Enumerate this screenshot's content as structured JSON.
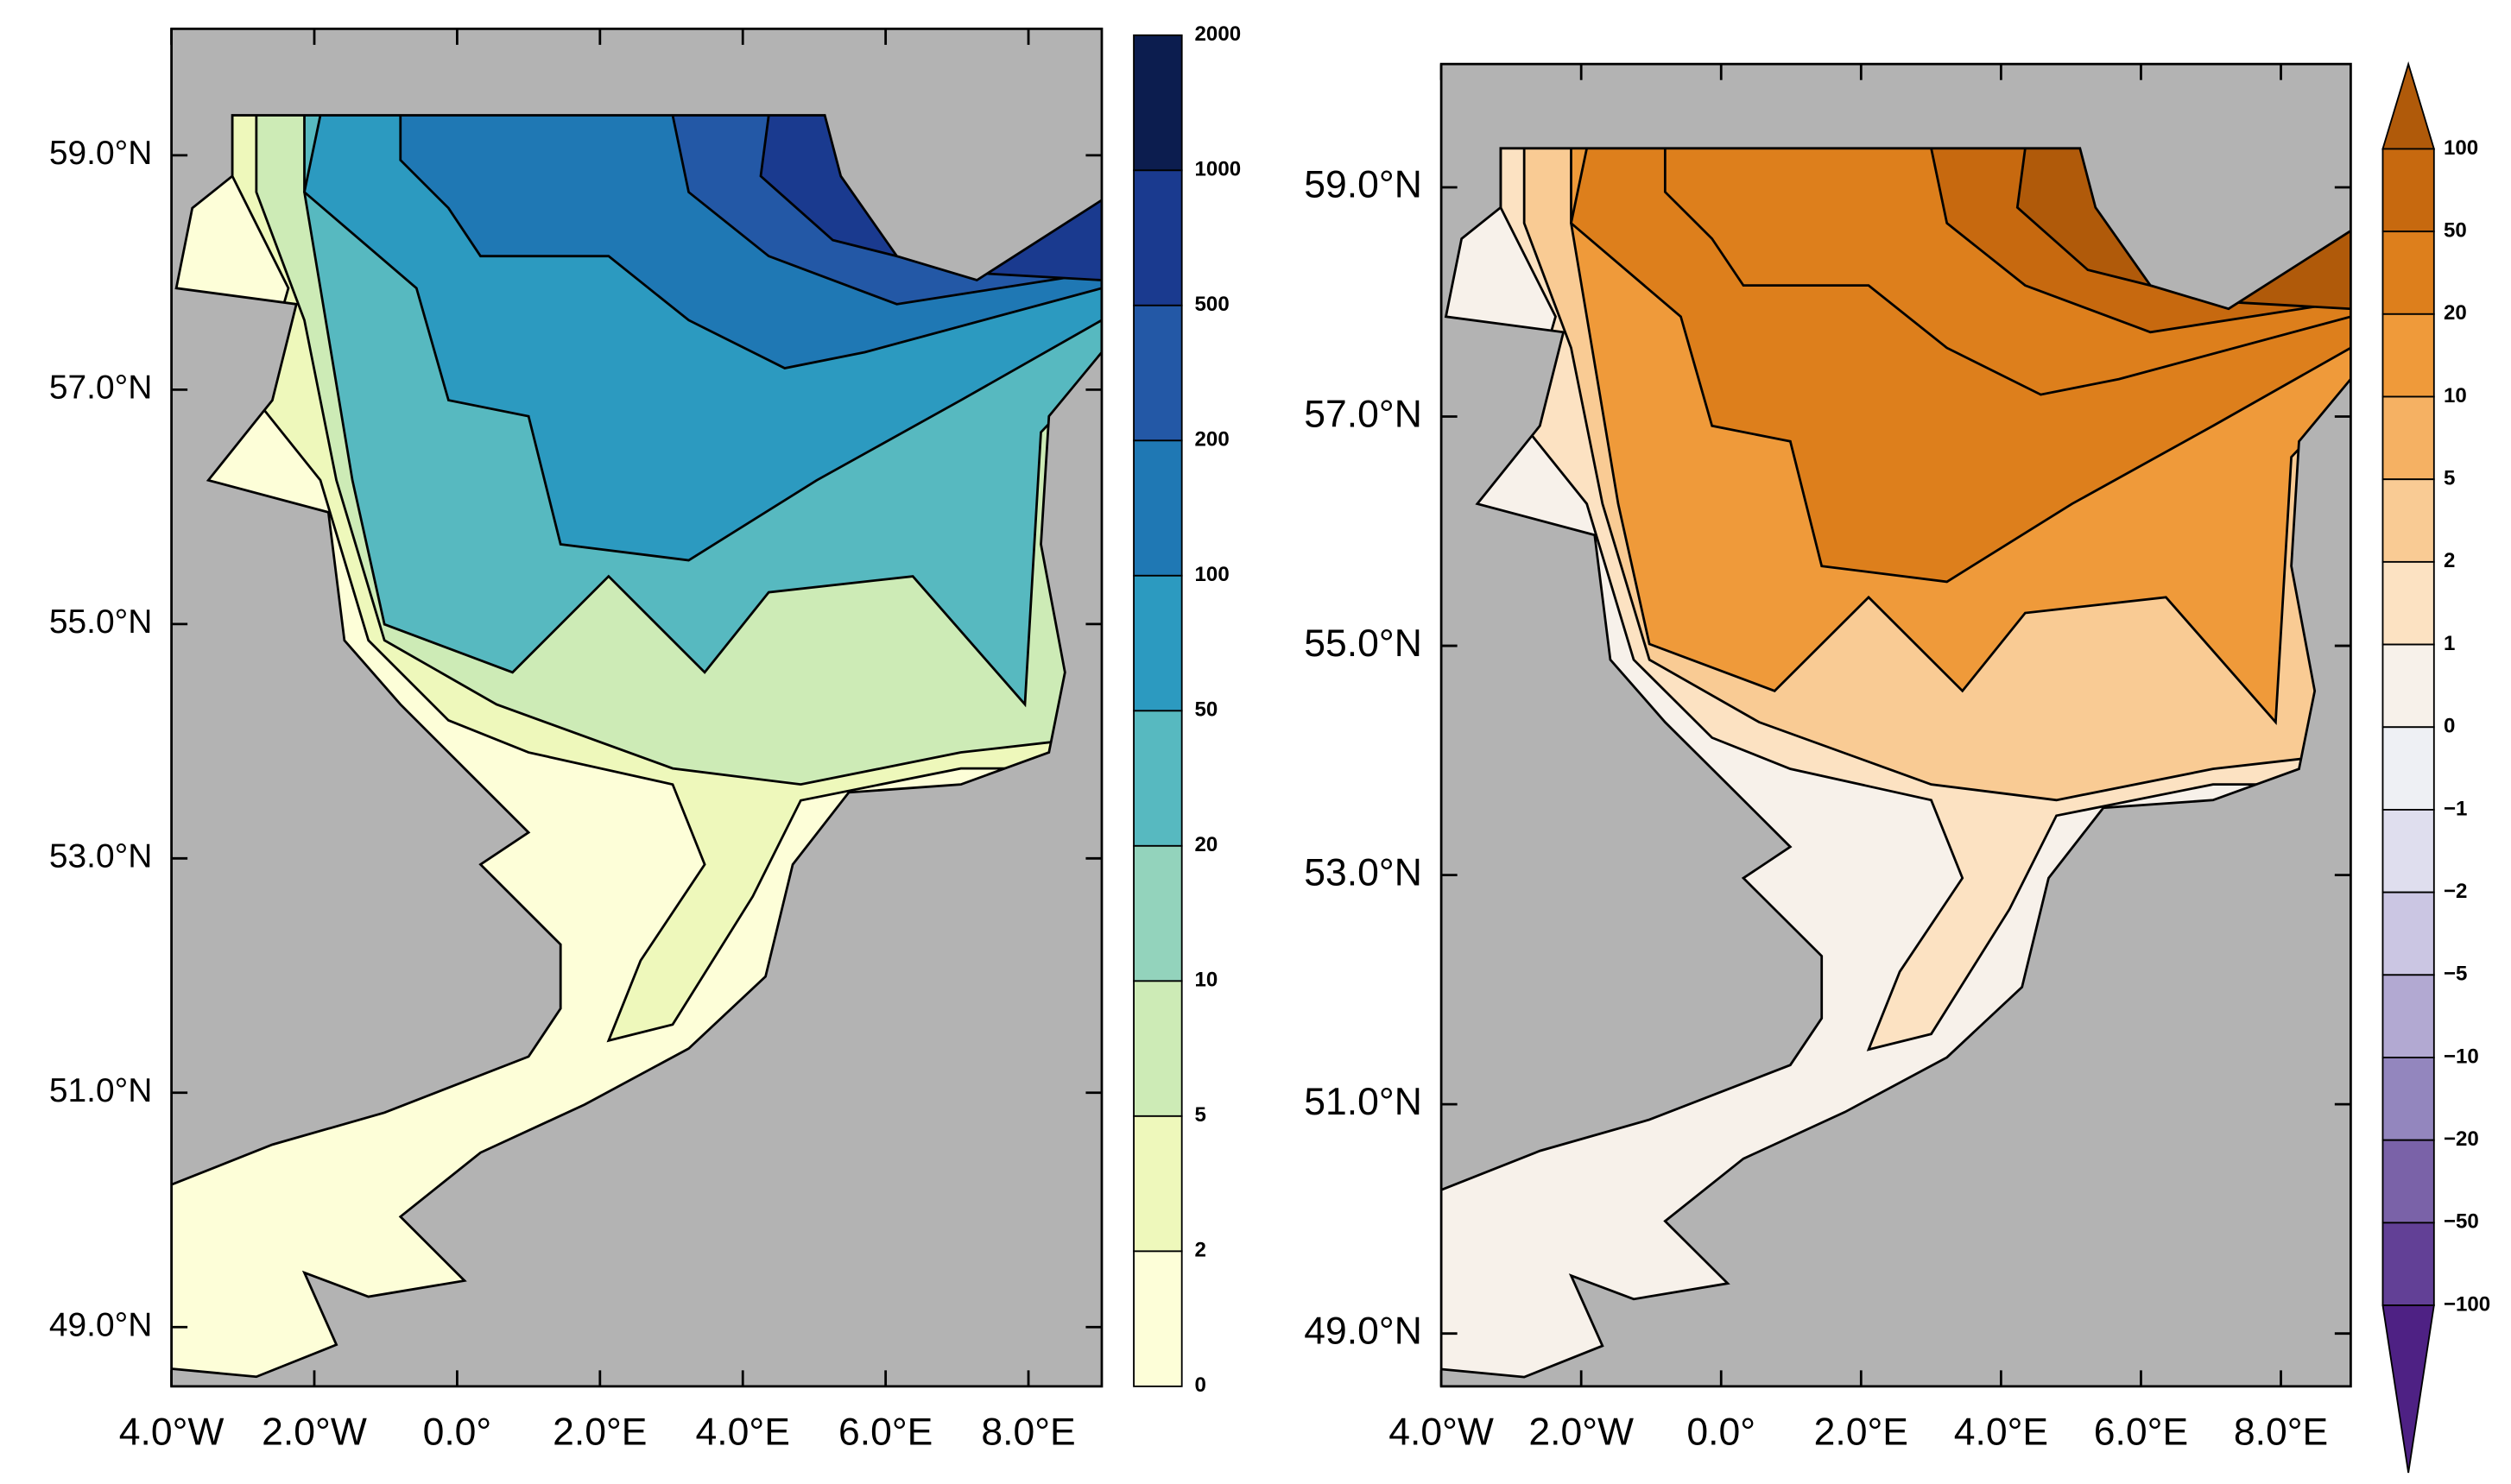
{
  "panels": [
    {
      "lat_labels": [
        "59.0°N",
        "57.0°N",
        "55.0°N",
        "53.0°N",
        "51.0°N",
        "49.0°N"
      ],
      "lon_labels": [
        "4.0°W",
        "2.0°W",
        "0.0°",
        "2.0°E",
        "4.0°E",
        "6.0°E",
        "8.0°E"
      ],
      "colorbar": {
        "labels": [
          "2000",
          "1000",
          "500",
          "200",
          "100",
          "50",
          "20",
          "10",
          "5",
          "2",
          "0"
        ],
        "colors": [
          "#0c1d4f",
          "#1a3a8f",
          "#2358a6",
          "#1f78b4",
          "#2c9ac0",
          "#57b9c0",
          "#93d3bc",
          "#cdebb6",
          "#eef8bb",
          "#fdfed8"
        ]
      }
    },
    {
      "lat_labels": [
        "59.0°N",
        "57.0°N",
        "55.0°N",
        "53.0°N",
        "51.0°N",
        "49.0°N"
      ],
      "lon_labels": [
        "4.0°W",
        "2.0°W",
        "0.0°",
        "2.0°E",
        "4.0°E",
        "6.0°E",
        "8.0°E"
      ],
      "colorbar": {
        "labels": [
          "100",
          "50",
          "20",
          "10",
          "5",
          "2",
          "1",
          "0",
          "−1",
          "−2",
          "−5",
          "−10",
          "−20",
          "−50",
          "−100"
        ],
        "colors": [
          "#b05a0a",
          "#c7690f",
          "#dd7f1c",
          "#ef9a3a",
          "#f5b163",
          "#f9cb94",
          "#fce2c2",
          "#f7f1ea",
          "#eef0f4",
          "#dfdeee",
          "#cbc6e3",
          "#b2a9d2",
          "#9386be",
          "#7a62a8",
          "#624096",
          "#4e2184"
        ]
      }
    }
  ]
}
